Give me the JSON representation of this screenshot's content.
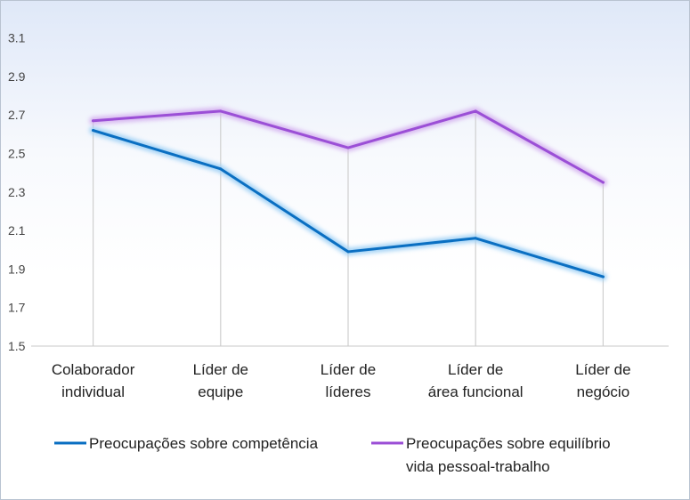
{
  "chart_data": {
    "type": "line",
    "categories": [
      [
        "Colaborador",
        "individual"
      ],
      [
        "Líder de",
        "equipe"
      ],
      [
        "Líder de",
        "líderes"
      ],
      [
        "Líder de",
        "área funcional"
      ],
      [
        "Líder de",
        "negócio"
      ]
    ],
    "series": [
      {
        "name": "Preocupações sobre competência",
        "name_lines": [
          "Preocupações sobre competência"
        ],
        "color": "#0a6fc2",
        "glow": "#9fd0f5",
        "values": [
          2.62,
          2.42,
          1.99,
          2.06,
          1.86
        ]
      },
      {
        "name": "Preocupações sobre equilíbrio vida pessoal-trabalho",
        "name_lines": [
          "Preocupações sobre equilíbrio",
          "vida pessoal-trabalho"
        ],
        "color": "#9b4fd6",
        "glow": "#d6b2f0",
        "values": [
          2.67,
          2.72,
          2.53,
          2.72,
          2.35
        ]
      }
    ],
    "y_ticks": [
      "1.5",
      "1.7",
      "1.9",
      "2.1",
      "2.3",
      "2.5",
      "2.7",
      "2.9",
      "3.1"
    ],
    "ylim": [
      1.5,
      3.2
    ],
    "grid": "vertical-drop-lines",
    "legend": "bottom"
  }
}
